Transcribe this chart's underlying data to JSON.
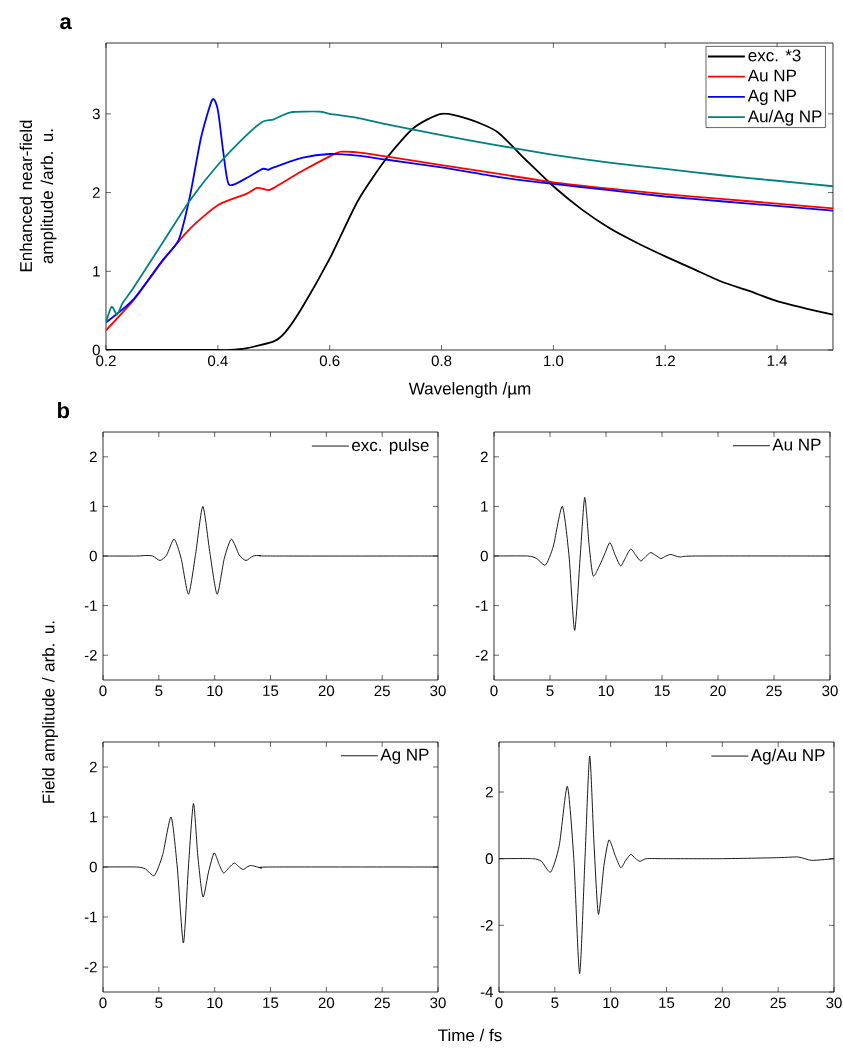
{
  "chart_data": [
    {
      "type": "line",
      "title": "a",
      "xlabel": "Wavelength /µm",
      "ylabel": "Enhanced near-field amplitude /arb. u.",
      "xlim": [
        0.2,
        1.5
      ],
      "ylim": [
        0,
        3.9
      ],
      "xticks": [
        0.2,
        0.4,
        0.6,
        0.8,
        {
          "value": 1,
          "label": "1.0"
        },
        1.2,
        1.4
      ],
      "yticks": [
        0,
        1,
        2,
        3
      ],
      "legend": "top right",
      "series": [
        {
          "name": "exc. *3",
          "color": "#000000",
          "x": [
            0.2,
            0.3,
            0.4,
            0.42,
            0.45,
            0.5,
            0.52,
            0.55,
            0.6,
            0.65,
            0.7,
            0.75,
            0.8,
            0.85,
            0.9,
            0.95,
            1.0,
            1.05,
            1.1,
            1.15,
            1.2,
            1.25,
            1.3,
            1.35,
            1.4,
            1.45,
            1.5
          ],
          "values": [
            0,
            0,
            0,
            0,
            0.02,
            0.11,
            0.22,
            0.53,
            1.16,
            1.89,
            2.42,
            2.82,
            3.0,
            2.93,
            2.77,
            2.42,
            2.08,
            1.79,
            1.55,
            1.36,
            1.19,
            1.03,
            0.87,
            0.75,
            0.62,
            0.53,
            0.45
          ]
        },
        {
          "name": "Au NP",
          "color": "#ff0000",
          "x": [
            0.2,
            0.25,
            0.3,
            0.35,
            0.4,
            0.45,
            0.47,
            0.49,
            0.5,
            0.55,
            0.6,
            0.62,
            0.65,
            0.7,
            0.8,
            0.9,
            1.0,
            1.1,
            1.2,
            1.3,
            1.4,
            1.5
          ],
          "values": [
            0.25,
            0.64,
            1.12,
            1.54,
            1.84,
            1.98,
            2.06,
            2.03,
            2.06,
            2.27,
            2.46,
            2.52,
            2.51,
            2.46,
            2.35,
            2.24,
            2.13,
            2.05,
            1.98,
            1.92,
            1.86,
            1.8
          ]
        },
        {
          "name": "Ag NP",
          "color": "#0000ff",
          "x": [
            0.2,
            0.25,
            0.3,
            0.33,
            0.35,
            0.37,
            0.39,
            0.4,
            0.41,
            0.42,
            0.45,
            0.48,
            0.49,
            0.5,
            0.55,
            0.6,
            0.65,
            0.7,
            0.8,
            0.9,
            1.0,
            1.1,
            1.2,
            1.3,
            1.4,
            1.5
          ],
          "values": [
            0.35,
            0.65,
            1.13,
            1.4,
            1.95,
            2.7,
            3.18,
            3.05,
            2.5,
            2.1,
            2.18,
            2.3,
            2.29,
            2.32,
            2.44,
            2.49,
            2.47,
            2.42,
            2.32,
            2.2,
            2.11,
            2.03,
            1.95,
            1.89,
            1.83,
            1.77
          ]
        },
        {
          "name": "Au/Ag NP",
          "color": "#008080",
          "x": [
            0.2,
            0.21,
            0.22,
            0.23,
            0.25,
            0.3,
            0.35,
            0.4,
            0.45,
            0.48,
            0.5,
            0.53,
            0.58,
            0.6,
            0.65,
            0.7,
            0.8,
            0.9,
            1.0,
            1.1,
            1.2,
            1.3,
            1.4,
            1.5
          ],
          "values": [
            0.35,
            0.55,
            0.45,
            0.6,
            0.8,
            1.35,
            1.9,
            2.35,
            2.72,
            2.9,
            2.93,
            3.02,
            3.03,
            3.0,
            2.95,
            2.87,
            2.73,
            2.6,
            2.48,
            2.38,
            2.3,
            2.22,
            2.15,
            2.08
          ]
        }
      ]
    },
    {
      "type": "line",
      "title": "b",
      "ylabel": "Field amplitude / arb. u.",
      "xlim": [
        0,
        30
      ],
      "ylim": [
        -2.5,
        2.5
      ],
      "xticks": [
        0,
        5,
        10,
        15,
        20,
        25,
        30
      ],
      "yticks": [
        -2,
        -1,
        0,
        1,
        2
      ],
      "legend": "top right",
      "series": [
        {
          "name": "exc. pulse",
          "color": "#000000",
          "x": [
            0,
            3,
            3.8,
            4.45,
            5.1,
            5.7,
            6.37,
            7.0,
            7.66,
            8.3,
            8.94,
            9.58,
            10.22,
            10.86,
            11.5,
            12.2,
            12.8,
            13.45,
            14.1,
            15,
            30
          ],
          "values": [
            0,
            0,
            0.01,
            0,
            -0.09,
            0.02,
            0.34,
            -0.05,
            -0.77,
            0.05,
            1.0,
            0.05,
            -0.77,
            -0.05,
            0.34,
            0.02,
            -0.09,
            0,
            0.01,
            0,
            0
          ]
        }
      ]
    },
    {
      "type": "line",
      "xlim": [
        0,
        30
      ],
      "ylim": [
        -2.5,
        2.5
      ],
      "xticks": [
        0,
        5,
        10,
        15,
        20,
        25,
        30
      ],
      "yticks": [
        -2,
        -1,
        0,
        1,
        2
      ],
      "legend": "top right",
      "series": [
        {
          "name": "Au NP",
          "color": "#000000",
          "x": [
            0,
            3.0,
            3.8,
            4.6,
            5.3,
            6.1,
            6.7,
            7.2,
            7.7,
            8.1,
            8.5,
            8.85,
            9.45,
            9.9,
            10.35,
            10.8,
            11.3,
            11.75,
            12.2,
            12.65,
            13.1,
            13.55,
            14.0,
            14.45,
            14.9,
            15.35,
            15.8,
            16.6,
            18,
            30
          ],
          "values": [
            0,
            0,
            -0.05,
            -0.18,
            0.2,
            1.0,
            0.0,
            -1.5,
            0.0,
            1.18,
            0.2,
            -0.4,
            -0.18,
            0.05,
            0.27,
            0.03,
            -0.2,
            -0.03,
            0.14,
            0.02,
            -0.1,
            -0.01,
            0.07,
            0.01,
            -0.05,
            0,
            0.03,
            -0.02,
            0,
            0
          ]
        }
      ]
    },
    {
      "type": "line",
      "xlim": [
        0,
        30
      ],
      "ylim": [
        -2.5,
        2.5
      ],
      "xticks": [
        0,
        5,
        10,
        15,
        20,
        25,
        30
      ],
      "yticks": [
        -2,
        -1,
        0,
        1,
        2
      ],
      "legend": "top right",
      "series": [
        {
          "name": "Ag NP",
          "color": "#000000",
          "x": [
            0,
            3.0,
            3.8,
            4.6,
            5.35,
            6.1,
            6.65,
            7.2,
            7.65,
            8.1,
            8.5,
            8.95,
            9.45,
            9.95,
            10.4,
            10.8,
            11.3,
            11.75,
            12.15,
            12.55,
            12.9,
            13.3,
            14.2,
            15,
            30
          ],
          "values": [
            0,
            0,
            -0.04,
            -0.17,
            0.25,
            1.0,
            0.0,
            -1.52,
            0.0,
            1.27,
            0.2,
            -0.6,
            -0.1,
            0.28,
            0.05,
            -0.12,
            -0.01,
            0.08,
            0.01,
            -0.05,
            0,
            0.03,
            -0.02,
            0,
            0
          ]
        }
      ]
    },
    {
      "type": "line",
      "xlabel": "Time / fs",
      "xlim": [
        0,
        30
      ],
      "ylim": [
        -4,
        3.5
      ],
      "xticks": [
        0,
        5,
        10,
        15,
        20,
        25,
        30
      ],
      "yticks": [
        -4,
        -2,
        0,
        2
      ],
      "legend": "top right",
      "series": [
        {
          "name": "Ag/Au NP",
          "color": "#000000",
          "x": [
            0,
            3.0,
            3.8,
            4.63,
            5.4,
            6.12,
            6.7,
            7.22,
            7.7,
            8.12,
            8.5,
            8.9,
            9.4,
            9.85,
            10.4,
            10.9,
            11.35,
            11.8,
            12.2,
            12.63,
            13.2,
            15,
            20,
            25,
            26.8,
            28,
            30
          ],
          "values": [
            0,
            0,
            -0.08,
            -0.4,
            0.4,
            2.17,
            0.0,
            -3.45,
            0.0,
            3.08,
            0.5,
            -1.67,
            -0.2,
            0.56,
            0.1,
            -0.27,
            -0.05,
            0.13,
            0.01,
            -0.08,
            0,
            0,
            0,
            0.03,
            0.05,
            -0.05,
            0
          ]
        }
      ]
    }
  ]
}
